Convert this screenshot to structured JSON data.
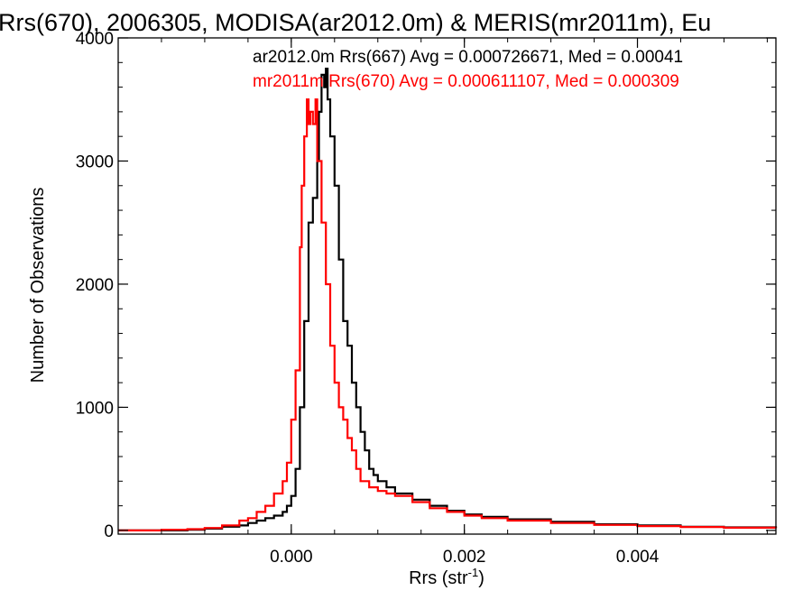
{
  "chart_data": {
    "type": "line",
    "title": "Rrs(670), 2006305, MODISA(ar2012.0m) & MERIS(mr2011m), Eu",
    "xlabel": "Rrs (str",
    "xlabel_superscript": "-1",
    "xlabel_close": ")",
    "ylabel": "Number of Observations",
    "xlim": [
      -0.002,
      0.0056
    ],
    "ylim": [
      -30,
      4000
    ],
    "xticks": [
      {
        "value": 0.0,
        "label": "0.000"
      },
      {
        "value": 0.002,
        "label": "0.002"
      },
      {
        "value": 0.004,
        "label": "0.004"
      }
    ],
    "yticks": [
      {
        "value": 0,
        "label": "0"
      },
      {
        "value": 1000,
        "label": "1000"
      },
      {
        "value": 2000,
        "label": "2000"
      },
      {
        "value": 3000,
        "label": "3000"
      },
      {
        "value": 4000,
        "label": "4000"
      }
    ],
    "x_minor_step": 0.0005,
    "y_minor_step": 200,
    "grid": false,
    "legend_position": "top",
    "series": [
      {
        "name": "ar2012.0m Rrs(667) Avg = 0.000726671, Med = 0.00041",
        "color": "#000000",
        "x": [
          -0.002,
          -0.0015,
          -0.0012,
          -0.001,
          -0.0008,
          -0.0006,
          -0.0005,
          -0.0004,
          -0.0003,
          -0.0002,
          -0.0001,
          -5e-05,
          0.0,
          5e-05,
          0.0001,
          0.00015,
          0.0002,
          0.00025,
          0.0003,
          0.00032,
          0.00035,
          0.00038,
          0.0004,
          0.00042,
          0.00045,
          0.0005,
          0.00055,
          0.0006,
          0.00065,
          0.0007,
          0.00075,
          0.0008,
          0.00085,
          0.0009,
          0.00095,
          0.001,
          0.0011,
          0.0012,
          0.0014,
          0.0016,
          0.0018,
          0.002,
          0.0022,
          0.0025,
          0.003,
          0.0035,
          0.004,
          0.0045,
          0.005,
          0.0056
        ],
        "y": [
          0,
          0,
          5,
          15,
          30,
          40,
          60,
          80,
          100,
          120,
          150,
          200,
          280,
          500,
          1000,
          1700,
          2500,
          2700,
          3000,
          3400,
          3700,
          3600,
          3750,
          3500,
          3200,
          2800,
          2200,
          1700,
          1500,
          1200,
          1000,
          800,
          650,
          500,
          450,
          400,
          350,
          300,
          250,
          200,
          160,
          130,
          110,
          90,
          70,
          50,
          40,
          30,
          25,
          20
        ]
      },
      {
        "name": "mr2011m Rrs(670) Avg = 0.000611107, Med = 0.000309",
        "color": "#ff0000",
        "x": [
          -0.002,
          -0.0015,
          -0.0012,
          -0.001,
          -0.0008,
          -0.0006,
          -0.0005,
          -0.0004,
          -0.0003,
          -0.0002,
          -0.0001,
          -5e-05,
          0.0,
          5e-05,
          0.0001,
          0.00012,
          0.00015,
          0.00018,
          0.0002,
          0.00022,
          0.00025,
          0.00028,
          0.0003,
          0.00035,
          0.0004,
          0.00045,
          0.0005,
          0.00055,
          0.0006,
          0.00065,
          0.0007,
          0.00075,
          0.0008,
          0.0009,
          0.001,
          0.0011,
          0.0012,
          0.0014,
          0.0016,
          0.0018,
          0.002,
          0.0022,
          0.0025,
          0.003,
          0.0035,
          0.004,
          0.0045,
          0.005,
          0.0056
        ],
        "y": [
          0,
          5,
          10,
          20,
          40,
          80,
          100,
          150,
          200,
          300,
          400,
          550,
          900,
          1300,
          2300,
          2800,
          3200,
          3500,
          3300,
          3400,
          3300,
          3500,
          3000,
          2500,
          2000,
          1500,
          1200,
          1000,
          900,
          750,
          650,
          500,
          400,
          350,
          320,
          300,
          280,
          230,
          180,
          150,
          120,
          100,
          80,
          60,
          45,
          35,
          28,
          22,
          18
        ]
      }
    ]
  }
}
